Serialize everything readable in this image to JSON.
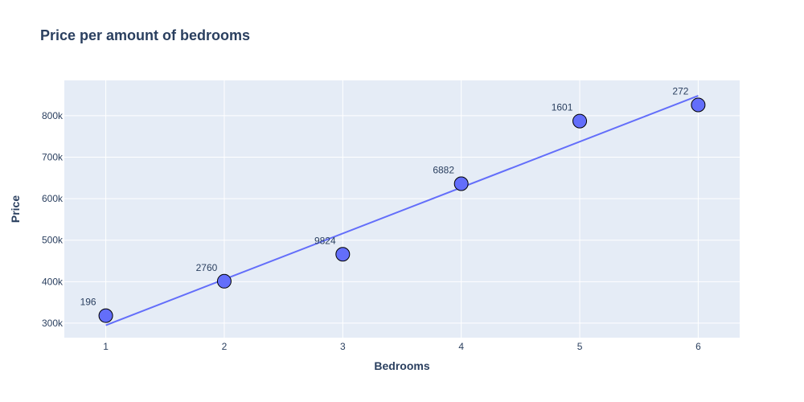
{
  "chart_data": {
    "type": "scatter",
    "title": "Price per amount of bedrooms",
    "xlabel": "Bedrooms",
    "ylabel": "Price",
    "xlim": [
      0.65,
      6.35
    ],
    "ylim": [
      265000,
      885000
    ],
    "x_ticks": [
      1,
      2,
      3,
      4,
      5,
      6
    ],
    "x_tick_labels": [
      "1",
      "2",
      "3",
      "4",
      "5",
      "6"
    ],
    "y_ticks": [
      300000,
      400000,
      500000,
      600000,
      700000,
      800000
    ],
    "y_tick_labels": [
      "300k",
      "400k",
      "500k",
      "600k",
      "700k",
      "800k"
    ],
    "grid": true,
    "background_color": "#e5ecf6",
    "grid_color": "#ffffff",
    "series": [
      {
        "type": "scatter",
        "x": [
          1,
          2,
          3,
          4,
          5,
          6
        ],
        "y": [
          318000,
          401000,
          466000,
          636000,
          787000,
          826000
        ],
        "text": [
          "196",
          "2760",
          "9824",
          "6882",
          "1601",
          "272"
        ],
        "color": "#636efa"
      },
      {
        "type": "line",
        "x": [
          1,
          6
        ],
        "y": [
          295000,
          848000
        ],
        "color": "#636efa"
      }
    ]
  }
}
